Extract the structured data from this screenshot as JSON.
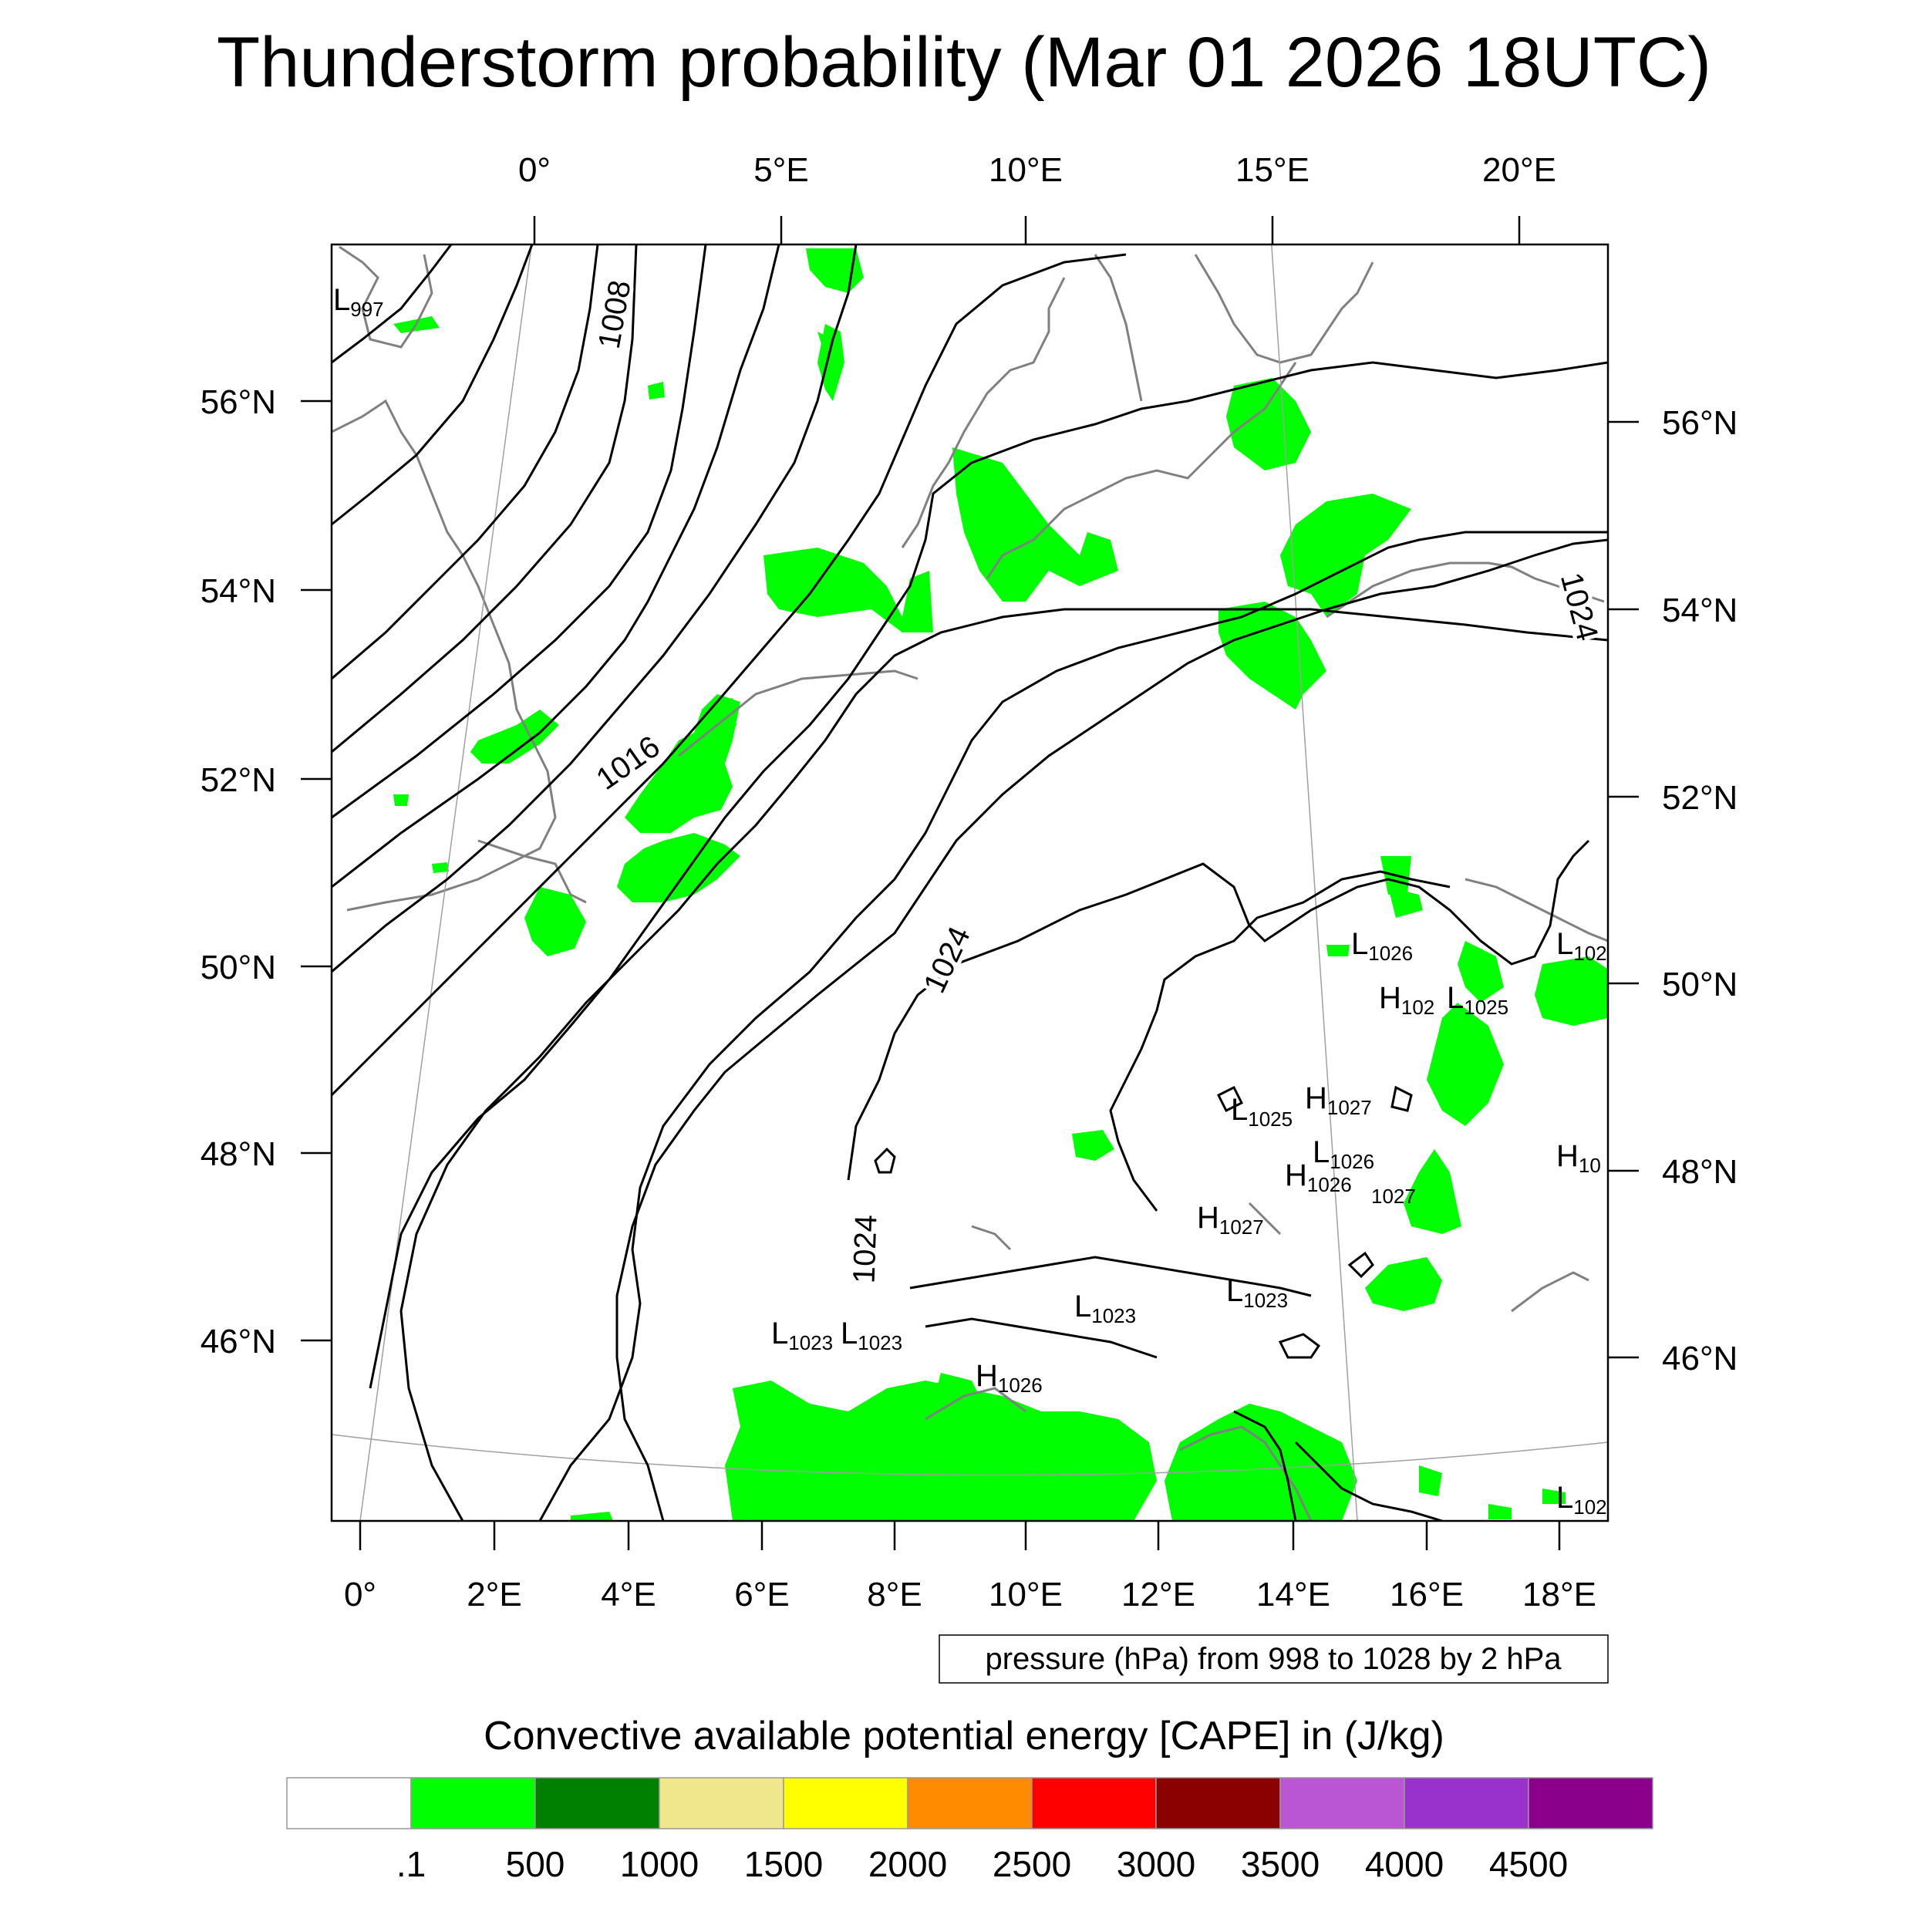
{
  "title": "Thunderstorm probability (Mar 01 2026 18UTC)",
  "top_axis_ticks": [
    "0°",
    "5°E",
    "10°E",
    "15°E",
    "20°E"
  ],
  "bottom_axis_ticks": [
    "0°",
    "2°E",
    "4°E",
    "6°E",
    "8°E",
    "10°E",
    "12°E",
    "14°E",
    "16°E",
    "18°E"
  ],
  "left_axis_ticks": [
    "56°N",
    "54°N",
    "52°N",
    "50°N",
    "48°N",
    "46°N"
  ],
  "right_axis_ticks": [
    "56°N",
    "54°N",
    "52°N",
    "50°N",
    "48°N",
    "46°N"
  ],
  "isobar_labels": [
    "1008",
    "1016",
    "1024",
    "1024",
    "1024"
  ],
  "pressure_centers": [
    {
      "type": "L",
      "value": "997"
    },
    {
      "type": "L",
      "value": "1026"
    },
    {
      "type": "H",
      "value": "102"
    },
    {
      "type": "L",
      "value": "1025"
    },
    {
      "type": "L",
      "value": "102"
    },
    {
      "type": "H",
      "value": "1027"
    },
    {
      "type": "L",
      "value": "1025"
    },
    {
      "type": "L",
      "value": "1026"
    },
    {
      "type": "H",
      "value": "1026"
    },
    {
      "type": "",
      "value": "1027"
    },
    {
      "type": "H",
      "value": "10"
    },
    {
      "type": "H",
      "value": "1027"
    },
    {
      "type": "L",
      "value": "1023"
    },
    {
      "type": "L",
      "value": "1023"
    },
    {
      "type": "L",
      "value": "1023"
    },
    {
      "type": "L",
      "value": "1023"
    },
    {
      "type": "H",
      "value": "1026"
    },
    {
      "type": "L",
      "value": "102"
    }
  ],
  "contour_note": "pressure (hPa) from 998 to 1028 by 2 hPa",
  "legend": {
    "title": "Convective available potential energy [CAPE] in (J/kg)",
    "colors": [
      "#ffffff",
      "#00ff00",
      "#008000",
      "#f0e68c",
      "#ffff00",
      "#ff8c00",
      "#ff0000",
      "#8b0000",
      "#ba55d3",
      "#9932cc",
      "#8b008b"
    ],
    "labels": [
      ".1",
      "500",
      "1000",
      "1500",
      "2000",
      "2500",
      "3000",
      "3500",
      "4000",
      "4500"
    ]
  },
  "colors": {
    "cape_low": "#00ff00",
    "coastline": "#808080",
    "isobar": "#000000",
    "gridline": "#a0a0a0"
  }
}
